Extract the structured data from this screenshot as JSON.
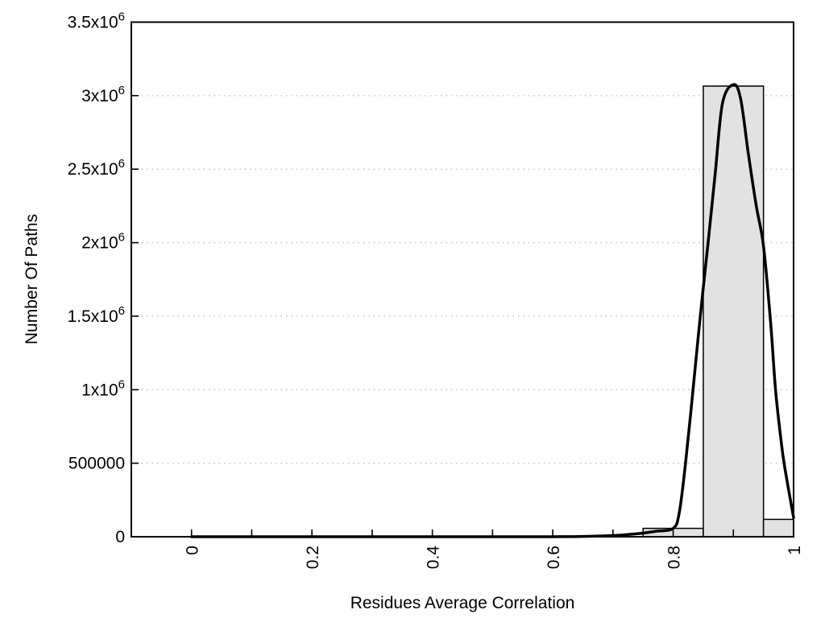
{
  "chart_data": {
    "type": "bar",
    "subtype": "histogram-with-smooth-curve",
    "title": "",
    "xlabel": "Residues Average Correlation",
    "ylabel": "Number Of Paths",
    "xlim": [
      -0.1,
      1.0
    ],
    "ylim": [
      0,
      3500000
    ],
    "grid": {
      "horizontal": true,
      "vertical": false,
      "style": "dotted"
    },
    "x_ticks": [
      {
        "v": 0.0,
        "label": "0"
      },
      {
        "v": 0.1,
        "label": ""
      },
      {
        "v": 0.2,
        "label": "0.2"
      },
      {
        "v": 0.3,
        "label": ""
      },
      {
        "v": 0.4,
        "label": "0.4"
      },
      {
        "v": 0.5,
        "label": ""
      },
      {
        "v": 0.6,
        "label": "0.6"
      },
      {
        "v": 0.7,
        "label": ""
      },
      {
        "v": 0.8,
        "label": "0.8"
      },
      {
        "v": 0.9,
        "label": ""
      },
      {
        "v": 1.0,
        "label": "1"
      }
    ],
    "y_ticks": [
      {
        "v": 0,
        "label": "0"
      },
      {
        "v": 500000,
        "label": "500000"
      },
      {
        "v": 1000000,
        "label": "1x10^6"
      },
      {
        "v": 1500000,
        "label": "1.5x10^6"
      },
      {
        "v": 2000000,
        "label": "2x10^6"
      },
      {
        "v": 2500000,
        "label": "2.5x10^6"
      },
      {
        "v": 3000000,
        "label": "3x10^6"
      },
      {
        "v": 3500000,
        "label": "3.5x10^6"
      }
    ],
    "bars": [
      {
        "x0": 0.75,
        "x1": 0.85,
        "center": 0.8,
        "value": 57000
      },
      {
        "x0": 0.85,
        "x1": 0.95,
        "center": 0.9,
        "value": 3065000
      },
      {
        "x0": 0.95,
        "x1": 1.0,
        "center": 1.0,
        "value": 118000
      }
    ],
    "curve_points": [
      [
        0.0,
        0
      ],
      [
        0.05,
        0
      ],
      [
        0.1,
        0
      ],
      [
        0.15,
        0
      ],
      [
        0.2,
        0
      ],
      [
        0.25,
        0
      ],
      [
        0.3,
        0
      ],
      [
        0.35,
        0
      ],
      [
        0.4,
        0
      ],
      [
        0.45,
        0
      ],
      [
        0.5,
        0
      ],
      [
        0.55,
        0
      ],
      [
        0.6,
        0
      ],
      [
        0.65,
        2000
      ],
      [
        0.7,
        8000
      ],
      [
        0.74,
        20000
      ],
      [
        0.77,
        36000
      ],
      [
        0.8,
        57000
      ],
      [
        0.81,
        160000
      ],
      [
        0.82,
        480000
      ],
      [
        0.833,
        1000000
      ],
      [
        0.845,
        1500000
      ],
      [
        0.858,
        2000000
      ],
      [
        0.87,
        2480000
      ],
      [
        0.882,
        2950000
      ],
      [
        0.9,
        3075000
      ],
      [
        0.912,
        2980000
      ],
      [
        0.925,
        2600000
      ],
      [
        0.938,
        2250000
      ],
      [
        0.95,
        1980000
      ],
      [
        0.962,
        1450000
      ],
      [
        0.97,
        1000000
      ],
      [
        0.9785,
        680000
      ],
      [
        0.985,
        480000
      ],
      [
        1.0,
        130000
      ]
    ],
    "colors": {
      "bar_fill": "#e2e2e2",
      "bar_border": "#000000",
      "curve": "#000000",
      "grid": "#b4b4b4",
      "frame": "#000000",
      "text": "#000000",
      "background": "#ffffff"
    }
  }
}
